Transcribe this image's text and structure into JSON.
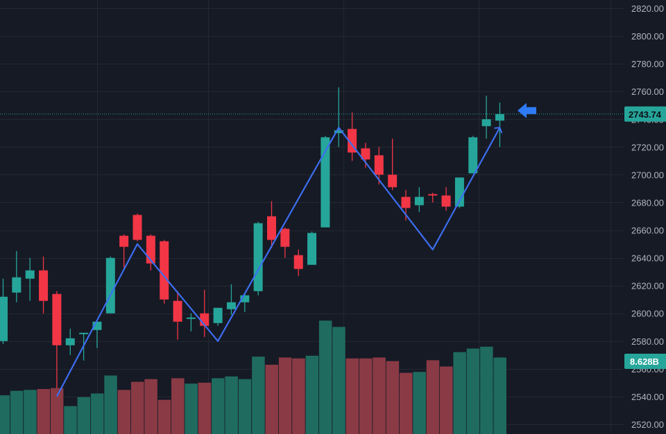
{
  "chart_data": {
    "type": "candlestick",
    "y_axis": {
      "ticks": [
        "2520.00",
        "2540.00",
        "2560.00",
        "2580.00",
        "2600.00",
        "2620.00",
        "2640.00",
        "2660.00",
        "2680.00",
        "2700.00",
        "2720.00",
        "2740.00",
        "2760.00",
        "2780.00",
        "2800.00",
        "2820.00"
      ],
      "range": [
        2513,
        2826
      ]
    },
    "grid": true,
    "last_price": "2743.74",
    "volume_value": "8.628B",
    "colors": {
      "background": "#161a25",
      "grid": "#242833",
      "up": "#26a69a",
      "down": "#f23645",
      "volume_up": "#1f6b60",
      "volume_down": "#8a3a45",
      "pattern_line": "#3d6ef0",
      "arrow": "#2f7bf5",
      "price_tag": "#26a69a",
      "volume_tag": "#26a69a"
    },
    "candles": [
      {
        "o": 2580,
        "h": 2625,
        "l": 2578,
        "c": 2612
      },
      {
        "o": 2615,
        "h": 2645,
        "l": 2608,
        "c": 2626
      },
      {
        "o": 2625,
        "h": 2640,
        "l": 2609,
        "c": 2631
      },
      {
        "o": 2631,
        "h": 2641,
        "l": 2600,
        "c": 2609
      },
      {
        "o": 2614,
        "h": 2616,
        "l": 2546,
        "c": 2577
      },
      {
        "o": 2577,
        "h": 2589,
        "l": 2570,
        "c": 2582
      },
      {
        "o": 2585,
        "h": 2586,
        "l": 2566,
        "c": 2586
      },
      {
        "o": 2588,
        "h": 2594,
        "l": 2575,
        "c": 2594
      },
      {
        "o": 2600,
        "h": 2641,
        "l": 2600,
        "c": 2640
      },
      {
        "o": 2656,
        "h": 2657,
        "l": 2633,
        "c": 2648
      },
      {
        "o": 2671,
        "h": 2672,
        "l": 2652,
        "c": 2653
      },
      {
        "o": 2656,
        "h": 2657,
        "l": 2631,
        "c": 2636
      },
      {
        "o": 2652,
        "h": 2653,
        "l": 2607,
        "c": 2610
      },
      {
        "o": 2609,
        "h": 2616,
        "l": 2581,
        "c": 2594
      },
      {
        "o": 2597,
        "h": 2600,
        "l": 2587,
        "c": 2597
      },
      {
        "o": 2600,
        "h": 2617,
        "l": 2583,
        "c": 2591
      },
      {
        "o": 2593,
        "h": 2604,
        "l": 2591,
        "c": 2604
      },
      {
        "o": 2603,
        "h": 2621,
        "l": 2599,
        "c": 2608
      },
      {
        "o": 2608,
        "h": 2615,
        "l": 2601,
        "c": 2613
      },
      {
        "o": 2616,
        "h": 2666,
        "l": 2613,
        "c": 2665
      },
      {
        "o": 2670,
        "h": 2681,
        "l": 2647,
        "c": 2653
      },
      {
        "o": 2661,
        "h": 2662,
        "l": 2640,
        "c": 2648
      },
      {
        "o": 2642,
        "h": 2646,
        "l": 2627,
        "c": 2632
      },
      {
        "o": 2635,
        "h": 2659,
        "l": 2635,
        "c": 2658
      },
      {
        "o": 2662,
        "h": 2728,
        "l": 2662,
        "c": 2727
      },
      {
        "o": 2730,
        "h": 2763,
        "l": 2720,
        "c": 2732
      },
      {
        "o": 2733,
        "h": 2745,
        "l": 2710,
        "c": 2716
      },
      {
        "o": 2719,
        "h": 2723,
        "l": 2705,
        "c": 2711
      },
      {
        "o": 2714,
        "h": 2720,
        "l": 2693,
        "c": 2700
      },
      {
        "o": 2700,
        "h": 2726,
        "l": 2689,
        "c": 2691
      },
      {
        "o": 2684,
        "h": 2689,
        "l": 2667,
        "c": 2676
      },
      {
        "o": 2678,
        "h": 2691,
        "l": 2673,
        "c": 2684
      },
      {
        "o": 2686,
        "h": 2687,
        "l": 2680,
        "c": 2685
      },
      {
        "o": 2685,
        "h": 2691,
        "l": 2674,
        "c": 2677
      },
      {
        "o": 2677,
        "h": 2698,
        "l": 2676,
        "c": 2698
      },
      {
        "o": 2701,
        "h": 2728,
        "l": 2701,
        "c": 2727
      },
      {
        "o": 2735,
        "h": 2757,
        "l": 2726,
        "c": 2740
      },
      {
        "o": 2739,
        "h": 2752,
        "l": 2720,
        "c": 2743.74
      }
    ],
    "volumes": [
      0.43,
      0.48,
      0.49,
      0.5,
      0.51,
      0.31,
      0.41,
      0.45,
      0.65,
      0.49,
      0.58,
      0.61,
      0.38,
      0.62,
      0.56,
      0.57,
      0.62,
      0.64,
      0.61,
      0.86,
      0.77,
      0.85,
      0.84,
      0.87,
      1.26,
      1.19,
      0.84,
      0.84,
      0.85,
      0.81,
      0.68,
      0.69,
      0.82,
      0.75,
      0.91,
      0.95,
      0.97,
      0.85
    ],
    "pattern_points": [
      {
        "i": 4,
        "p": 2540
      },
      {
        "i": 10,
        "p": 2650
      },
      {
        "i": 16,
        "p": 2580
      },
      {
        "i": 25,
        "p": 2734
      },
      {
        "i": 32,
        "p": 2646
      },
      {
        "i": 37,
        "p": 2734
      }
    ]
  }
}
